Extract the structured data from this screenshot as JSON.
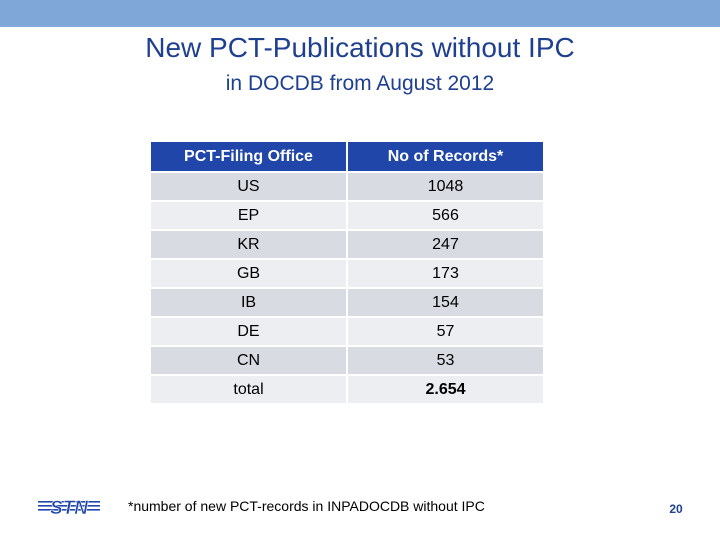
{
  "slide": {
    "title": "New PCT-Publications without IPC",
    "subtitle": "in DOCDB from August 2012",
    "footnote": "*number of new PCT-records in INPADOCDB without IPC",
    "page_number": "20",
    "logo_text": "STN"
  },
  "table": {
    "headers": [
      "PCT-Filing Office",
      "No of Records*"
    ],
    "rows": [
      {
        "office": "US",
        "count": "1048"
      },
      {
        "office": "EP",
        "count": "566"
      },
      {
        "office": "KR",
        "count": "247"
      },
      {
        "office": "GB",
        "count": "173"
      },
      {
        "office": "IB",
        "count": "154"
      },
      {
        "office": "DE",
        "count": "57"
      },
      {
        "office": "CN",
        "count": "53"
      },
      {
        "office": "total",
        "count": "2.654"
      }
    ]
  },
  "colors": {
    "accent_bar": "#7fa7d8",
    "title_text": "#1f3f8f",
    "header_fill": "#1f46a8",
    "row_fill_dark": "#d9dbe2",
    "row_fill_light": "#eceef2"
  }
}
